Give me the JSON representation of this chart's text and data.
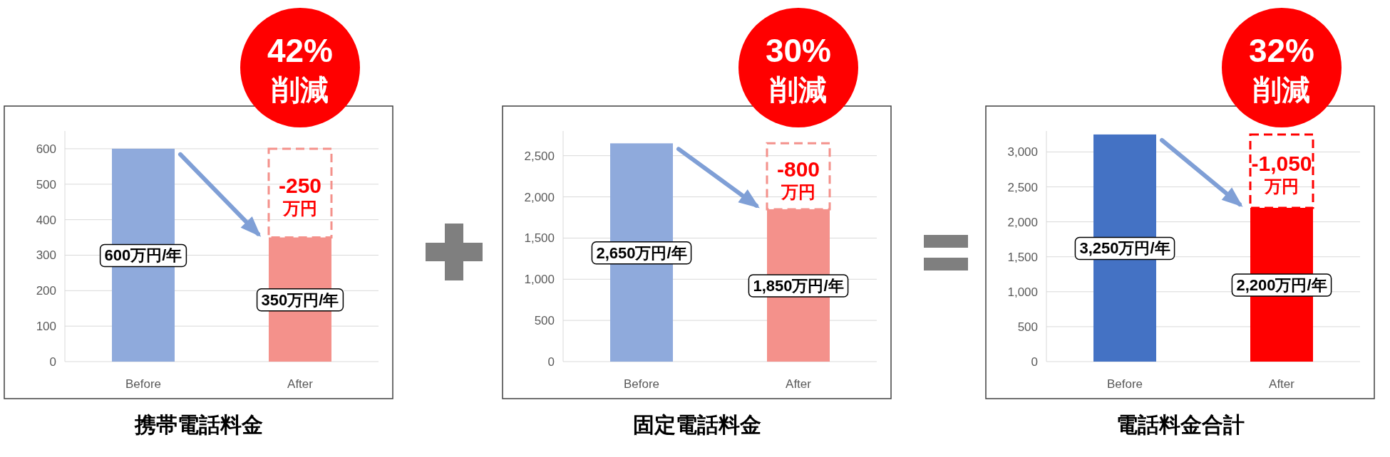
{
  "chart_data": [
    {
      "type": "bar",
      "title": "携帯電話料金",
      "categories": [
        "Before",
        "After"
      ],
      "values": [
        600,
        350
      ],
      "colors": [
        "#8faadc",
        "#f4918b"
      ],
      "ylim": [
        0,
        650
      ],
      "yticks": [
        0,
        100,
        200,
        300,
        400,
        500,
        600
      ],
      "grid": "y",
      "value_labels": [
        "600万円/年",
        "350万円/年"
      ],
      "annotations": [
        "42% 削減",
        "-250 万円"
      ]
    },
    {
      "type": "bar",
      "title": "固定電話料金",
      "categories": [
        "Before",
        "After"
      ],
      "values": [
        2650,
        1850
      ],
      "colors": [
        "#8faadc",
        "#f4918b"
      ],
      "ylim": [
        0,
        2800
      ],
      "yticks": [
        0,
        500,
        {
          "value": 1000,
          "label": "1,000"
        },
        {
          "value": 1500,
          "label": "1,500"
        },
        {
          "value": 2000,
          "label": "2,000"
        },
        {
          "value": 2500,
          "label": "2,500"
        }
      ],
      "grid": "y",
      "value_labels": [
        "2,650万円/年",
        "1,850万円/年"
      ],
      "annotations": [
        "30% 削減",
        "-800 万円"
      ]
    },
    {
      "type": "bar",
      "title": "電話料金合計",
      "categories": [
        "Before",
        "After"
      ],
      "values": [
        3250,
        2200
      ],
      "colors": [
        "#4472c4",
        "#ff0000"
      ],
      "ylim": [
        0,
        3300
      ],
      "yticks": [
        0,
        500,
        {
          "value": 1000,
          "label": "1,000"
        },
        {
          "value": 1500,
          "label": "1,500"
        },
        {
          "value": 2000,
          "label": "2,000"
        },
        {
          "value": 2500,
          "label": "2,500"
        },
        {
          "value": 3000,
          "label": "3,000"
        }
      ],
      "grid": "y",
      "value_labels": [
        "3,250万円/年",
        "2,200万円/年"
      ],
      "annotations": [
        "32% 削減",
        "-1,050 万円"
      ]
    }
  ]
}
